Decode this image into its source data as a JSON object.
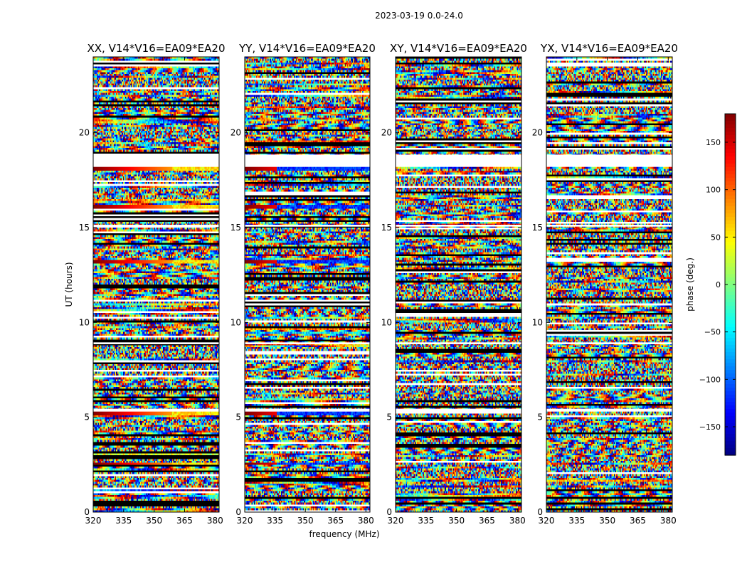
{
  "figure_title": "2023-03-19 0.0-24.0",
  "chart_data": [
    {
      "type": "heatmap",
      "title": "XX, V14*V16=EA09*EA20",
      "xlabel": "",
      "ylabel": "UT (hours)",
      "xlim": [
        320,
        382
      ],
      "ylim": [
        0,
        24
      ],
      "xticks": [
        320,
        335,
        350,
        365,
        380
      ],
      "yticks": [
        0,
        5,
        10,
        15,
        20
      ],
      "value_range": [
        -180,
        180
      ],
      "value_label": "phase (deg.)",
      "flagged_ut_bands": [
        [
          18.2,
          18.85
        ],
        [
          5.3,
          5.45
        ],
        [
          15.05,
          15.15
        ],
        [
          8.85,
          8.95
        ]
      ],
      "stripe_rows_ut": [
        18.1,
        16.1,
        13.2,
        5.2,
        2.55
      ],
      "rows": 240,
      "cols": 110,
      "grid": false
    },
    {
      "type": "heatmap",
      "title": "YY, V14*V16=EA09*EA20",
      "xlabel": "frequency (MHz)",
      "ylabel": "",
      "xlim": [
        320,
        382
      ],
      "ylim": [
        0,
        24
      ],
      "xticks": [
        320,
        335,
        350,
        365,
        380
      ],
      "yticks": [
        0,
        5,
        10,
        15,
        20
      ],
      "value_range": [
        -180,
        180
      ],
      "value_label": "phase (deg.)",
      "flagged_ut_bands": [
        [
          18.2,
          18.85
        ],
        [
          5.3,
          5.45
        ],
        [
          15.05,
          15.15
        ],
        [
          8.85,
          8.95
        ]
      ],
      "stripe_rows_ut": [
        18.1,
        16.1,
        13.2,
        5.2,
        2.55
      ],
      "rows": 240,
      "cols": 110,
      "grid": false
    },
    {
      "type": "heatmap",
      "title": "XY, V14*V16=EA09*EA20",
      "xlabel": "",
      "ylabel": "",
      "xlim": [
        320,
        382
      ],
      "ylim": [
        0,
        24
      ],
      "xticks": [
        320,
        335,
        350,
        365,
        380
      ],
      "yticks": [
        0,
        5,
        10,
        15,
        20
      ],
      "value_range": [
        -180,
        180
      ],
      "value_label": "phase (deg.)",
      "flagged_ut_bands": [
        [
          18.2,
          18.85
        ],
        [
          5.3,
          5.45
        ],
        [
          15.05,
          15.15
        ],
        [
          8.85,
          8.95
        ]
      ],
      "stripe_rows_ut": [],
      "rows": 240,
      "cols": 110,
      "grid": false
    },
    {
      "type": "heatmap",
      "title": "YX, V14*V16=EA09*EA20",
      "xlabel": "",
      "ylabel": "",
      "xlim": [
        320,
        382
      ],
      "ylim": [
        0,
        24
      ],
      "xticks": [
        320,
        335,
        350,
        365,
        380
      ],
      "yticks": [
        0,
        5,
        10,
        15,
        20
      ],
      "value_range": [
        -180,
        180
      ],
      "value_label": "phase (deg.)",
      "flagged_ut_bands": [
        [
          18.2,
          18.85
        ],
        [
          5.3,
          5.45
        ],
        [
          15.05,
          15.15
        ],
        [
          8.85,
          8.95
        ]
      ],
      "stripe_rows_ut": [],
      "rows": 240,
      "cols": 110,
      "grid": false
    }
  ],
  "colorbar": {
    "label": "phase (deg.)",
    "range": [
      -180,
      180
    ],
    "ticks": [
      150,
      100,
      50,
      0,
      -50,
      -100,
      -150
    ],
    "colormap": "jet"
  }
}
